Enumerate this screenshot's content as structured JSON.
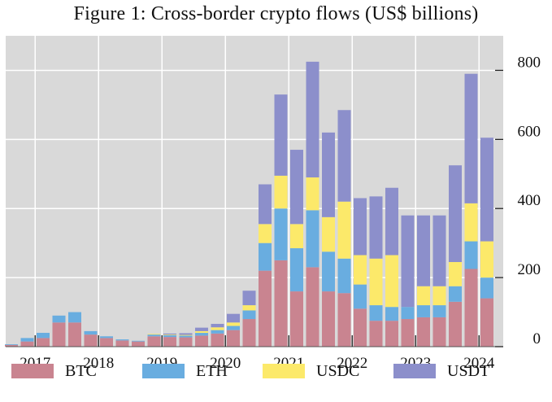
{
  "chart_data": {
    "type": "bar",
    "stacked": true,
    "title": "Figure 1: Cross-border crypto flows (US$ billions)",
    "xlabel": "",
    "ylabel": "",
    "ylim": [
      0,
      900
    ],
    "y_ticks": [
      0,
      200,
      400,
      600,
      800
    ],
    "y_axis_side": "right",
    "grid": true,
    "legend_position": "bottom",
    "x_tick_labels": [
      "2017",
      "2018",
      "2019",
      "2020",
      "2021",
      "2022",
      "2023",
      "2024"
    ],
    "x_tick_before_bar": [
      2,
      6,
      10,
      14,
      18,
      22,
      26,
      30
    ],
    "categories": [
      "2016Q3",
      "2016Q4",
      "2017Q1",
      "2017Q2",
      "2017Q3",
      "2017Q4",
      "2018Q1",
      "2018Q2",
      "2018Q3",
      "2018Q4",
      "2019Q1",
      "2019Q2",
      "2019Q3",
      "2019Q4",
      "2020Q1",
      "2020Q2",
      "2020Q3",
      "2020Q4",
      "2021Q1",
      "2021Q2",
      "2021Q3",
      "2021Q4",
      "2022Q1",
      "2022Q2",
      "2022Q3",
      "2022Q4",
      "2023Q1",
      "2023Q2",
      "2023Q3",
      "2023Q4",
      "2024Q1",
      "2024Q2"
    ],
    "series": [
      {
        "name": "BTC",
        "color": "#c98490",
        "values": [
          5,
          15,
          25,
          70,
          70,
          35,
          25,
          18,
          15,
          30,
          28,
          27,
          32,
          38,
          48,
          80,
          220,
          250,
          160,
          230,
          160,
          155,
          110,
          75,
          75,
          80,
          85,
          85,
          130,
          225,
          140,
          0
        ]
      },
      {
        "name": "ETH",
        "color": "#69ade0",
        "values": [
          2,
          10,
          15,
          20,
          30,
          10,
          5,
          3,
          2,
          5,
          5,
          5,
          8,
          10,
          12,
          25,
          80,
          150,
          125,
          165,
          115,
          100,
          70,
          45,
          40,
          35,
          35,
          35,
          45,
          80,
          60,
          0
        ]
      },
      {
        "name": "USDC",
        "color": "#fce96a",
        "values": [
          0,
          0,
          0,
          0,
          0,
          0,
          0,
          0,
          0,
          2,
          2,
          2,
          5,
          8,
          10,
          15,
          55,
          95,
          70,
          95,
          100,
          165,
          85,
          135,
          150,
          0,
          55,
          55,
          70,
          110,
          105,
          0
        ]
      },
      {
        "name": "USDT",
        "color": "#8c8fcb",
        "values": [
          0,
          0,
          0,
          0,
          0,
          0,
          0,
          0,
          0,
          0,
          3,
          5,
          10,
          10,
          25,
          42,
          115,
          235,
          215,
          335,
          245,
          265,
          165,
          180,
          195,
          265,
          205,
          205,
          280,
          375,
          300,
          0
        ]
      }
    ]
  }
}
